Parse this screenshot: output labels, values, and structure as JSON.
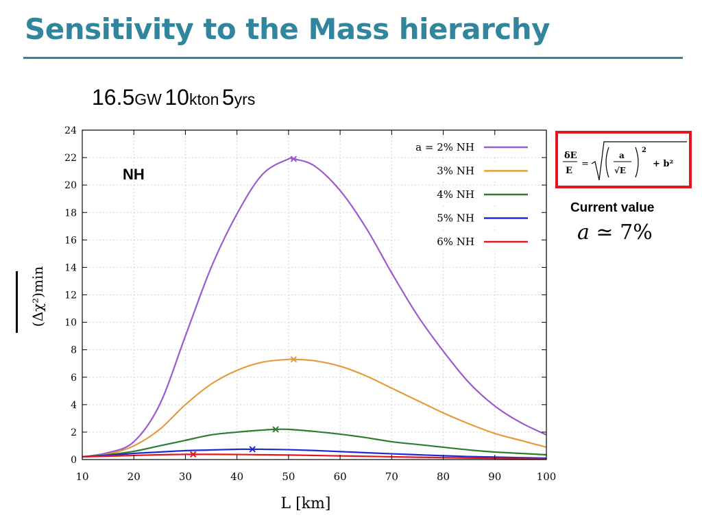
{
  "slide": {
    "title": "Sensitivity to the Mass hierarchy",
    "subtitle": {
      "power_value": "16.5",
      "power_unit": "GW",
      "mass_value": "10",
      "mass_unit": "kton",
      "time_value": "5",
      "time_unit": "yrs"
    },
    "formula": {
      "lhs_num": "δE",
      "lhs_den": "E",
      "eq": "=",
      "frac_num": "a",
      "frac_den": "√E",
      "exp": "2",
      "plus": "+ b²"
    },
    "current": {
      "label": "Current value",
      "var": "a",
      "op": " ≃ ",
      "val": "7%"
    },
    "colors": {
      "title": "#31859c",
      "formula_border": "#e3161d"
    }
  },
  "chart_data": {
    "type": "line",
    "annotation": "NH",
    "xlabel": "L [km]",
    "ylabel": "(Δχ²)min",
    "xlim": [
      10,
      100
    ],
    "ylim": [
      0,
      24
    ],
    "xticks": [
      10,
      20,
      30,
      40,
      50,
      60,
      70,
      80,
      90,
      100
    ],
    "yticks": [
      0,
      2,
      4,
      6,
      8,
      10,
      12,
      14,
      16,
      18,
      20,
      22,
      24
    ],
    "grid": true,
    "legend_position": "top-right",
    "series": [
      {
        "name": "a = 2% NH",
        "color": "#9b59d0",
        "x": [
          10,
          15,
          20,
          25,
          30,
          35,
          40,
          45,
          50,
          51,
          55,
          60,
          65,
          70,
          75,
          80,
          85,
          90,
          95,
          100
        ],
        "y": [
          0.2,
          0.5,
          1.3,
          4.0,
          9.0,
          14.0,
          17.9,
          20.8,
          21.9,
          21.9,
          21.4,
          19.6,
          16.9,
          13.6,
          10.5,
          7.9,
          5.6,
          3.9,
          2.7,
          1.8
        ],
        "marker": [
          51,
          21.9
        ]
      },
      {
        "name": "3% NH",
        "color": "#e69a3a",
        "x": [
          10,
          15,
          20,
          25,
          30,
          35,
          40,
          45,
          50,
          51,
          55,
          60,
          65,
          70,
          75,
          80,
          85,
          90,
          95,
          100
        ],
        "y": [
          0.2,
          0.4,
          1.0,
          2.2,
          4.0,
          5.5,
          6.5,
          7.1,
          7.3,
          7.3,
          7.2,
          6.8,
          6.1,
          5.2,
          4.3,
          3.4,
          2.6,
          1.9,
          1.4,
          0.9
        ],
        "marker": [
          51,
          7.3
        ]
      },
      {
        "name": "4% NH",
        "color": "#2e7d2e",
        "x": [
          10,
          15,
          20,
          25,
          30,
          35,
          40,
          45,
          47.5,
          50,
          55,
          60,
          65,
          70,
          75,
          80,
          85,
          90,
          95,
          100
        ],
        "y": [
          0.2,
          0.35,
          0.6,
          1.0,
          1.4,
          1.8,
          2.0,
          2.15,
          2.2,
          2.2,
          2.05,
          1.85,
          1.6,
          1.3,
          1.1,
          0.9,
          0.7,
          0.55,
          0.45,
          0.35
        ],
        "marker": [
          47.5,
          2.2
        ]
      },
      {
        "name": "5% NH",
        "color": "#1c2bd6",
        "x": [
          10,
          15,
          20,
          25,
          30,
          35,
          40,
          43,
          45,
          50,
          55,
          60,
          65,
          70,
          75,
          80,
          85,
          90,
          95,
          100
        ],
        "y": [
          0.2,
          0.3,
          0.45,
          0.55,
          0.65,
          0.7,
          0.75,
          0.75,
          0.75,
          0.72,
          0.66,
          0.58,
          0.5,
          0.42,
          0.35,
          0.28,
          0.22,
          0.18,
          0.14,
          0.1
        ],
        "marker": [
          43,
          0.75
        ]
      },
      {
        "name": "6% NH",
        "color": "#e3161d",
        "x": [
          10,
          15,
          20,
          25,
          30,
          31.5,
          35,
          40,
          45,
          50,
          55,
          60,
          65,
          70,
          75,
          80,
          85,
          90,
          95,
          100
        ],
        "y": [
          0.2,
          0.25,
          0.3,
          0.35,
          0.38,
          0.38,
          0.38,
          0.37,
          0.35,
          0.33,
          0.3,
          0.27,
          0.24,
          0.2,
          0.17,
          0.14,
          0.11,
          0.09,
          0.07,
          0.05
        ],
        "marker": [
          31.5,
          0.38
        ]
      }
    ]
  }
}
